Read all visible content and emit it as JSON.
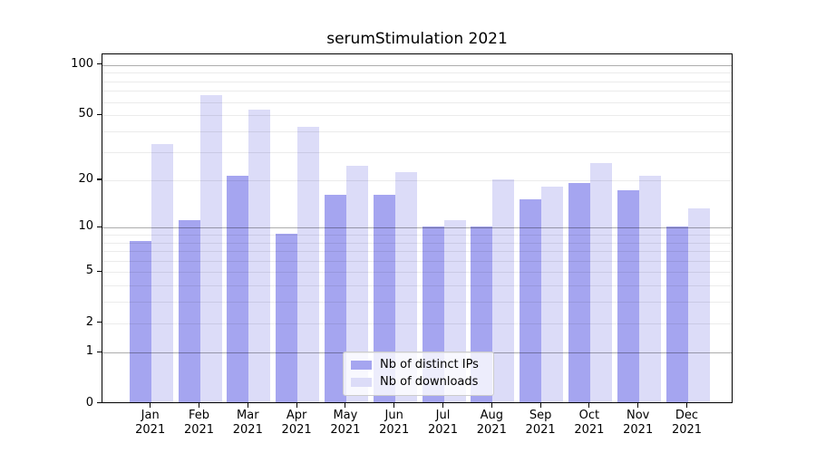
{
  "title": "serumStimulation 2021",
  "chart_data": {
    "type": "bar",
    "categories": [
      "Jan 2021",
      "Feb 2021",
      "Mar 2021",
      "Apr 2021",
      "May 2021",
      "Jun 2021",
      "Jul 2021",
      "Aug 2021",
      "Sep 2021",
      "Oct 2021",
      "Nov 2021",
      "Dec 2021"
    ],
    "series": [
      {
        "name": "Nb of distinct IPs",
        "color": "#a5a5f0",
        "values": [
          8,
          11,
          21,
          9,
          16,
          16,
          10,
          10,
          15,
          19,
          17,
          10
        ]
      },
      {
        "name": "Nb of downloads",
        "color": "#dcdcf8",
        "values": [
          33,
          65,
          53,
          42,
          24,
          22,
          11,
          20,
          18,
          25,
          21,
          13
        ]
      }
    ],
    "xlabel": "",
    "ylabel": "",
    "yscale": "log1p",
    "ylim": [
      0,
      116
    ],
    "yticks": [
      0,
      1,
      2,
      5,
      10,
      20,
      50,
      100
    ],
    "grid_major": [
      1,
      10,
      100
    ],
    "grid_minor": [
      2,
      3,
      4,
      5,
      6,
      7,
      8,
      9,
      20,
      30,
      40,
      50,
      60,
      70,
      80,
      90
    ],
    "grid_major_color": "rgba(0,0,0,0.32)",
    "grid_minor_color": "rgba(0,0,0,0.08)",
    "axis_color": "#000000",
    "legend_position": "lower center inside plot"
  }
}
